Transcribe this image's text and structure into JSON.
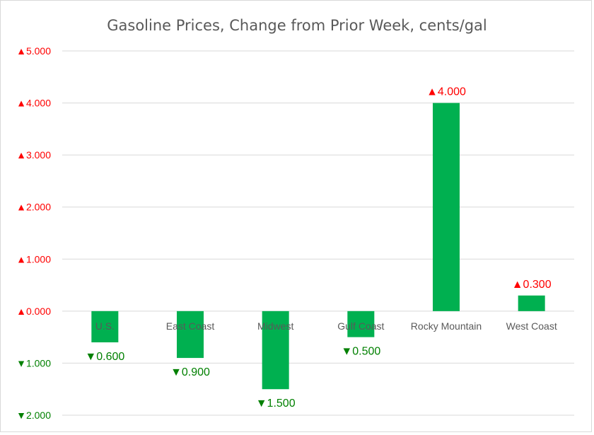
{
  "chart_data": {
    "type": "bar",
    "title": "Gasoline Prices, Change from Prior Week, cents/gal",
    "categories": [
      "U.S.",
      "East Coast",
      "Midwest",
      "Gulf Coast",
      "Rocky Mountain",
      "West Coast"
    ],
    "values": [
      -0.6,
      -0.9,
      -1.5,
      -0.5,
      4.0,
      0.3
    ],
    "ylim": [
      -2,
      5
    ],
    "yticks": [
      5,
      4,
      3,
      2,
      1,
      0,
      -1,
      -2
    ],
    "ytick_labels": [
      "▲5.000",
      "▲4.000",
      "▲3.000",
      "▲2.000",
      "▲1.000",
      "▲0.000",
      "▼1.000",
      "▼2.000"
    ],
    "data_labels": [
      "▼0.600",
      "▼0.900",
      "▼1.500",
      "▼0.500",
      "▲4.000",
      "▲0.300"
    ],
    "bar_color": "#00b050",
    "up_color": "#ff0000",
    "down_color": "#008000",
    "grid": true,
    "legend": false
  }
}
